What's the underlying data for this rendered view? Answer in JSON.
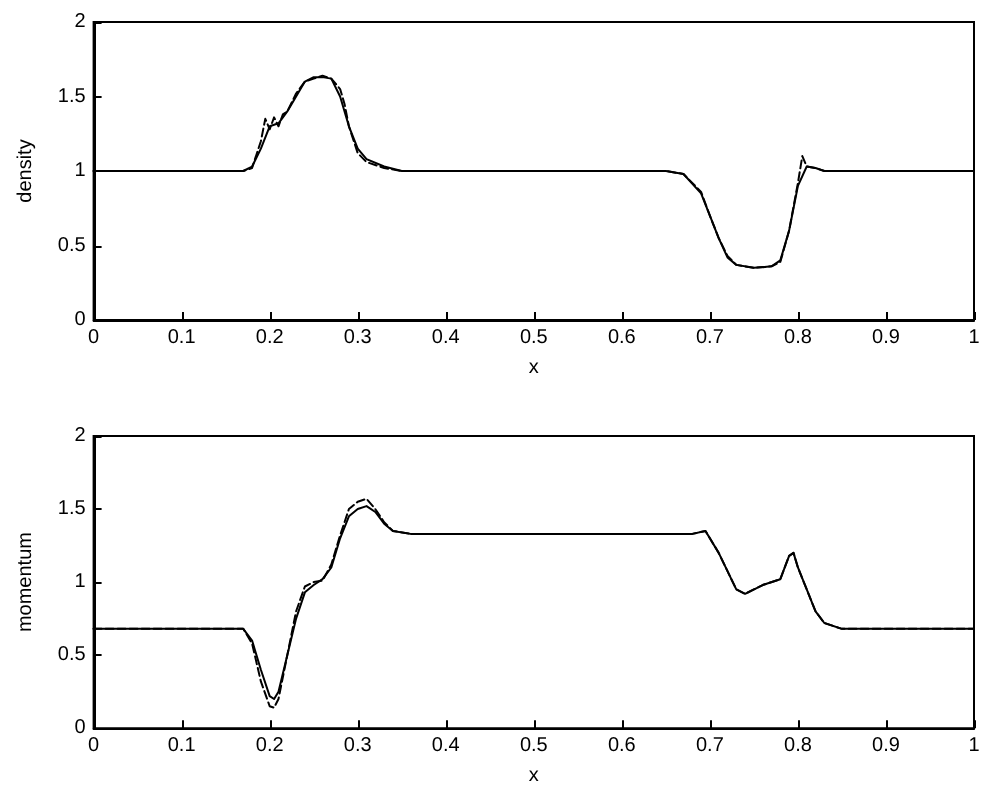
{
  "chart_data": [
    {
      "type": "line",
      "xlabel": "x",
      "ylabel": "density",
      "xlim": [
        0,
        1
      ],
      "xticks": [
        0,
        0.1,
        0.2,
        0.3,
        0.4,
        0.5,
        0.6,
        0.7,
        0.8,
        0.9,
        1
      ],
      "ylim": [
        0,
        2
      ],
      "yticks": [
        0,
        0.5,
        1,
        1.5,
        2
      ],
      "marker": "none",
      "series": [
        {
          "color": "#000000",
          "line_style": "solid",
          "x": [
            0,
            0.17,
            0.18,
            0.19,
            0.2,
            0.21,
            0.22,
            0.23,
            0.24,
            0.25,
            0.26,
            0.27,
            0.28,
            0.29,
            0.3,
            0.31,
            0.33,
            0.35,
            0.65,
            0.67,
            0.69,
            0.7,
            0.71,
            0.72,
            0.73,
            0.75,
            0.77,
            0.78,
            0.79,
            0.8,
            0.81,
            0.82,
            0.83,
            1
          ],
          "values": [
            1,
            1,
            1.03,
            1.15,
            1.3,
            1.32,
            1.4,
            1.5,
            1.6,
            1.63,
            1.63,
            1.62,
            1.5,
            1.3,
            1.15,
            1.08,
            1.03,
            1,
            1,
            0.98,
            0.85,
            0.7,
            0.55,
            0.42,
            0.37,
            0.35,
            0.36,
            0.4,
            0.6,
            0.9,
            1.03,
            1.02,
            1,
            1
          ]
        },
        {
          "color": "#000000",
          "line_style": "dashed",
          "x": [
            0,
            0.17,
            0.18,
            0.19,
            0.195,
            0.2,
            0.205,
            0.21,
            0.215,
            0.22,
            0.23,
            0.24,
            0.25,
            0.26,
            0.27,
            0.28,
            0.285,
            0.29,
            0.3,
            0.31,
            0.33,
            0.35,
            0.65,
            0.67,
            0.69,
            0.7,
            0.71,
            0.72,
            0.73,
            0.75,
            0.77,
            0.78,
            0.79,
            0.8,
            0.805,
            0.81,
            0.82,
            0.83,
            1
          ],
          "values": [
            1,
            1,
            1.02,
            1.2,
            1.35,
            1.28,
            1.36,
            1.3,
            1.38,
            1.4,
            1.52,
            1.6,
            1.62,
            1.64,
            1.62,
            1.55,
            1.45,
            1.3,
            1.12,
            1.06,
            1.02,
            1,
            1,
            0.98,
            0.86,
            0.7,
            0.55,
            0.43,
            0.37,
            0.35,
            0.36,
            0.39,
            0.6,
            0.92,
            1.1,
            1.03,
            1.02,
            1,
            1
          ]
        }
      ]
    },
    {
      "type": "line",
      "xlabel": "x",
      "ylabel": "momentum",
      "xlim": [
        0,
        1
      ],
      "xticks": [
        0,
        0.1,
        0.2,
        0.3,
        0.4,
        0.5,
        0.6,
        0.7,
        0.8,
        0.9,
        1
      ],
      "ylim": [
        0,
        2
      ],
      "yticks": [
        0,
        0.5,
        1,
        1.5,
        2
      ],
      "marker": "none",
      "series": [
        {
          "color": "#000000",
          "line_style": "solid",
          "x": [
            0,
            0.17,
            0.18,
            0.19,
            0.2,
            0.205,
            0.21,
            0.22,
            0.23,
            0.24,
            0.25,
            0.26,
            0.27,
            0.28,
            0.29,
            0.3,
            0.31,
            0.32,
            0.33,
            0.34,
            0.36,
            0.68,
            0.695,
            0.71,
            0.73,
            0.74,
            0.76,
            0.78,
            0.79,
            0.795,
            0.8,
            0.82,
            0.83,
            0.85,
            1
          ],
          "values": [
            0.68,
            0.68,
            0.6,
            0.4,
            0.22,
            0.2,
            0.25,
            0.5,
            0.75,
            0.93,
            0.98,
            1.02,
            1.1,
            1.3,
            1.45,
            1.5,
            1.52,
            1.48,
            1.4,
            1.35,
            1.33,
            1.33,
            1.35,
            1.2,
            0.95,
            0.92,
            0.98,
            1.02,
            1.18,
            1.2,
            1.1,
            0.8,
            0.72,
            0.68,
            0.68
          ]
        },
        {
          "color": "#000000",
          "line_style": "dashed",
          "x": [
            0,
            0.17,
            0.18,
            0.19,
            0.2,
            0.205,
            0.21,
            0.22,
            0.23,
            0.24,
            0.25,
            0.26,
            0.27,
            0.28,
            0.29,
            0.3,
            0.31,
            0.32,
            0.33,
            0.34,
            0.36,
            0.68,
            0.695,
            0.71,
            0.73,
            0.74,
            0.76,
            0.78,
            0.79,
            0.795,
            0.8,
            0.82,
            0.83,
            0.85,
            1
          ],
          "values": [
            0.68,
            0.68,
            0.58,
            0.32,
            0.15,
            0.14,
            0.2,
            0.5,
            0.8,
            0.97,
            1,
            1.01,
            1.12,
            1.32,
            1.5,
            1.55,
            1.57,
            1.5,
            1.41,
            1.35,
            1.33,
            1.33,
            1.35,
            1.2,
            0.95,
            0.92,
            0.98,
            1.02,
            1.18,
            1.2,
            1.1,
            0.8,
            0.72,
            0.68,
            0.68
          ]
        }
      ]
    }
  ]
}
